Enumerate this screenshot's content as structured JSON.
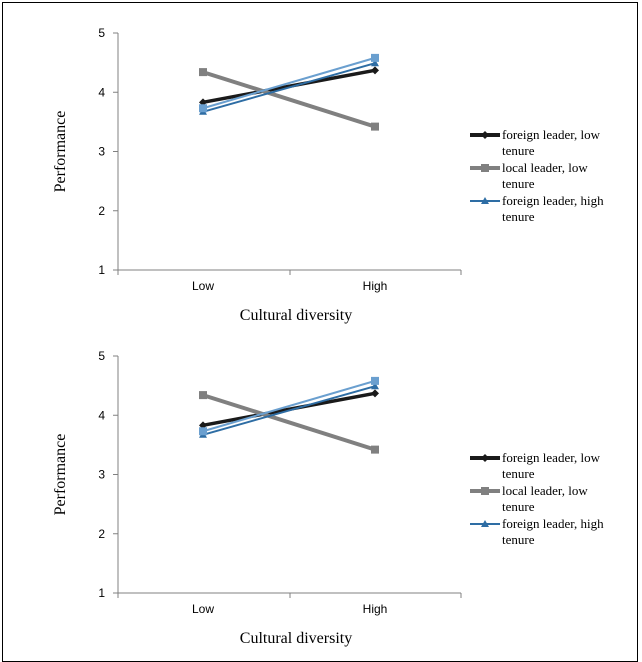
{
  "chart_data": [
    {
      "type": "line",
      "xlabel": "Cultural diversity",
      "ylabel": "Performance",
      "categories": [
        "Low",
        "High"
      ],
      "ylim": [
        1,
        5
      ],
      "yticks": [
        "1",
        "2",
        "3",
        "4",
        "5"
      ],
      "grid": false,
      "legend_position": "right",
      "series": [
        {
          "name": "foreign leader, low tenure",
          "values": [
            3.83,
            4.37
          ],
          "color": "#1a1a1a",
          "marker": "diamond"
        },
        {
          "name": "local leader, low tenure",
          "values": [
            4.34,
            3.42
          ],
          "color": "#808080",
          "marker": "square"
        },
        {
          "name": "foreign leader, high tenure",
          "values": [
            3.67,
            4.49
          ],
          "color": "#2e6da4",
          "marker": "triangle"
        },
        {
          "name": "",
          "values": [
            3.73,
            4.58
          ],
          "color": "#6a9fcf",
          "marker": "square",
          "legend": false
        }
      ]
    },
    {
      "type": "line",
      "xlabel": "Cultural diversity",
      "ylabel": "Performance",
      "categories": [
        "Low",
        "High"
      ],
      "ylim": [
        1,
        5
      ],
      "yticks": [
        "1",
        "2",
        "3",
        "4",
        "5"
      ],
      "grid": false,
      "legend_position": "right",
      "series": [
        {
          "name": "foreign leader, low tenure",
          "values": [
            3.83,
            4.37
          ],
          "color": "#1a1a1a",
          "marker": "diamond"
        },
        {
          "name": "local leader, low tenure",
          "values": [
            4.34,
            3.42
          ],
          "color": "#808080",
          "marker": "square"
        },
        {
          "name": "foreign leader, high tenure",
          "values": [
            3.67,
            4.49
          ],
          "color": "#2e6da4",
          "marker": "triangle"
        },
        {
          "name": "",
          "values": [
            3.73,
            4.58
          ],
          "color": "#6a9fcf",
          "marker": "square",
          "legend": false
        }
      ]
    }
  ]
}
